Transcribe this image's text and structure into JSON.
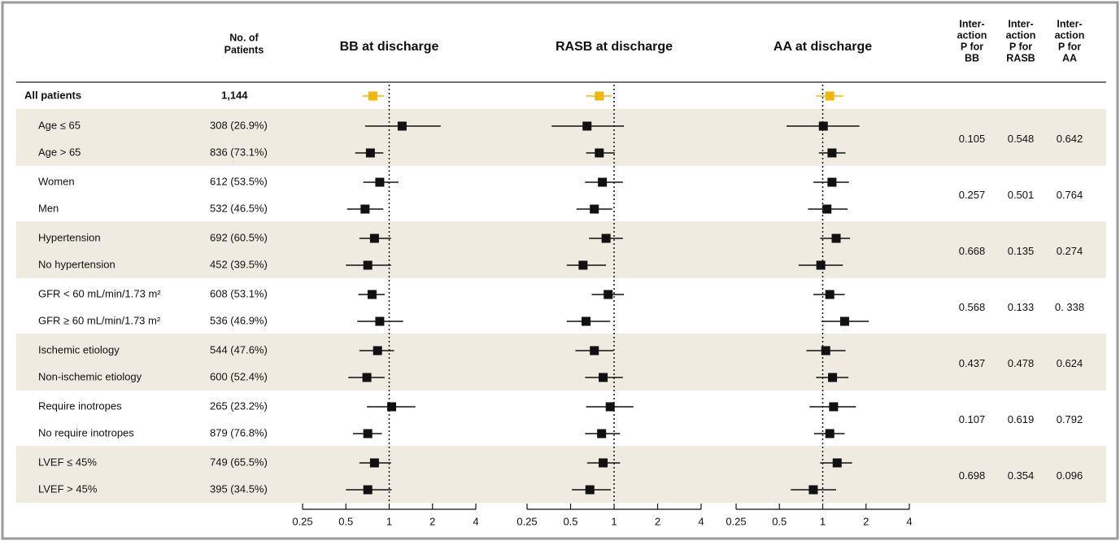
{
  "header": {
    "patients": [
      "No. of",
      "Patients"
    ],
    "interaction": {
      "bb": [
        "Inter-",
        "action",
        "P for",
        "BB"
      ],
      "rasb": [
        "Inter-",
        "action",
        "P for",
        "RASB"
      ],
      "aa": [
        "Inter-",
        "action",
        "P for",
        "AA"
      ]
    }
  },
  "rows": [
    {
      "label": "All patients",
      "patients": "1,144"
    },
    {
      "label": "Age ≤ 65",
      "patients": "308 (26.9%)"
    },
    {
      "label": "Age > 65",
      "patients": "836 (73.1%)"
    },
    {
      "label": "Women",
      "patients": "612 (53.5%)"
    },
    {
      "label": "Men",
      "patients": "532 (46.5%)"
    },
    {
      "label": "Hypertension",
      "patients": "692 (60.5%)"
    },
    {
      "label": "No hypertension",
      "patients": "452 (39.5%)"
    },
    {
      "label": "GFR < 60 mL/min/1.73 m²",
      "patients": "608 (53.1%)"
    },
    {
      "label": "GFR ≥ 60 mL/min/1.73 m²",
      "patients": "536 (46.9%)"
    },
    {
      "label": "Ischemic etiology",
      "patients": "544 (47.6%)"
    },
    {
      "label": "Non-ischemic etiology",
      "patients": "600 (52.4%)"
    },
    {
      "label": "Require inotropes",
      "patients": "265 (23.2%)"
    },
    {
      "label": "No require inotropes",
      "patients": "879 (76.8%)"
    },
    {
      "label": "LVEF ≤ 45%",
      "patients": "749 (65.5%)"
    },
    {
      "label": "LVEF > 45%",
      "patients": "395 (34.5%)"
    }
  ],
  "interaction": [
    {
      "bb": "0.105",
      "rasb": "0.548",
      "aa": "0.642"
    },
    {
      "bb": "0.257",
      "rasb": "0.501",
      "aa": "0.764"
    },
    {
      "bb": "0.668",
      "rasb": "0.135",
      "aa": "0.274"
    },
    {
      "bb": "0.568",
      "rasb": "0.133",
      "aa": "0. 338"
    },
    {
      "bb": "0.437",
      "rasb": "0.478",
      "aa": "0.624"
    },
    {
      "bb": "0.107",
      "rasb": "0.619",
      "aa": "0.792"
    },
    {
      "bb": "0.698",
      "rasb": "0.354",
      "aa": "0.096"
    }
  ],
  "chart_data": [
    {
      "type": "forest",
      "title": "BB at discharge",
      "title_color": "#e8262a",
      "values": [
        0.77,
        1.23,
        0.74,
        0.86,
        0.68,
        0.79,
        0.71,
        0.76,
        0.86,
        0.83,
        0.7,
        1.04,
        0.71,
        0.79,
        0.71
      ],
      "lower": [
        0.65,
        0.68,
        0.58,
        0.66,
        0.51,
        0.62,
        0.5,
        0.61,
        0.6,
        0.62,
        0.52,
        0.7,
        0.56,
        0.62,
        0.5
      ],
      "upper": [
        0.92,
        2.28,
        0.91,
        1.16,
        0.91,
        1.03,
        1.03,
        0.93,
        1.25,
        1.08,
        0.93,
        1.52,
        0.89,
        1.03,
        1.04
      ],
      "colors": [
        "#f2b705",
        "#111111",
        "#111111",
        "#111111",
        "#111111",
        "#111111",
        "#111111",
        "#111111",
        "#111111",
        "#111111",
        "#111111",
        "#111111",
        "#111111",
        "#111111",
        "#111111"
      ],
      "xlim": [
        0.25,
        4
      ],
      "xticks": [
        0.25,
        0.5,
        1,
        2,
        4
      ],
      "log_scale": true,
      "reference": 1
    },
    {
      "type": "forest",
      "title": "RASB at discharge",
      "title_color": "#2e3192",
      "values": [
        0.79,
        0.65,
        0.79,
        0.83,
        0.73,
        0.88,
        0.61,
        0.91,
        0.64,
        0.73,
        0.84,
        0.94,
        0.82,
        0.84,
        0.68
      ],
      "lower": [
        0.64,
        0.37,
        0.64,
        0.63,
        0.55,
        0.67,
        0.47,
        0.7,
        0.47,
        0.54,
        0.63,
        0.64,
        0.63,
        0.65,
        0.51
      ],
      "upper": [
        0.96,
        1.17,
        1.01,
        1.15,
        0.97,
        1.15,
        0.88,
        1.17,
        0.94,
        0.99,
        1.15,
        1.36,
        1.1,
        1.1,
        0.95
      ],
      "colors": [
        "#f2b705",
        "#111111",
        "#111111",
        "#111111",
        "#111111",
        "#111111",
        "#111111",
        "#111111",
        "#111111",
        "#111111",
        "#111111",
        "#111111",
        "#111111",
        "#111111",
        "#111111"
      ],
      "xlim": [
        0.25,
        4
      ],
      "xticks": [
        0.25,
        0.5,
        1,
        2,
        4
      ],
      "log_scale": true,
      "reference": 1
    },
    {
      "type": "forest",
      "title": "AA at discharge",
      "title_color": "#22a64a",
      "values": [
        1.12,
        1.01,
        1.16,
        1.16,
        1.07,
        1.24,
        0.97,
        1.12,
        1.42,
        1.05,
        1.17,
        1.19,
        1.12,
        1.26,
        0.86
      ],
      "lower": [
        0.9,
        0.56,
        0.94,
        0.86,
        0.79,
        0.96,
        0.68,
        0.86,
        0.98,
        0.77,
        0.9,
        0.81,
        0.87,
        0.96,
        0.6
      ],
      "upper": [
        1.39,
        1.8,
        1.44,
        1.52,
        1.49,
        1.55,
        1.38,
        1.42,
        2.09,
        1.44,
        1.51,
        1.7,
        1.42,
        1.6,
        1.24
      ],
      "colors": [
        "#f2b705",
        "#111111",
        "#111111",
        "#111111",
        "#111111",
        "#111111",
        "#111111",
        "#111111",
        "#111111",
        "#111111",
        "#111111",
        "#111111",
        "#111111",
        "#111111",
        "#111111"
      ],
      "xlim": [
        0.25,
        4
      ],
      "xticks": [
        0.25,
        0.5,
        1,
        2,
        4
      ],
      "log_scale": true,
      "reference": 1
    }
  ]
}
